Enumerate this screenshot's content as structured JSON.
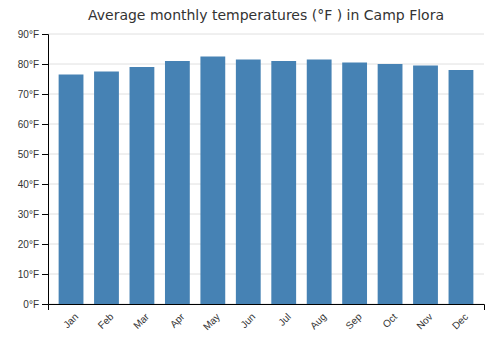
{
  "chart_data": {
    "type": "bar",
    "title": "Average monthly temperatures (°F ) in Camp Flora",
    "categories": [
      "Jan",
      "Feb",
      "Mar",
      "Apr",
      "May",
      "Jun",
      "Jul",
      "Aug",
      "Sep",
      "Oct",
      "Nov",
      "Dec"
    ],
    "values": [
      76.5,
      77.5,
      79.0,
      81.0,
      82.5,
      81.5,
      81.0,
      81.5,
      80.5,
      80.0,
      79.5,
      78.0
    ],
    "ylim": [
      0,
      90
    ],
    "yticks": [
      {
        "value": 0,
        "label": "0°F"
      },
      {
        "value": 10,
        "label": "10°F"
      },
      {
        "value": 20,
        "label": "20°F"
      },
      {
        "value": 30,
        "label": "30°F"
      },
      {
        "value": 40,
        "label": "40°F"
      },
      {
        "value": 50,
        "label": "50°F"
      },
      {
        "value": 60,
        "label": "60°F"
      },
      {
        "value": 70,
        "label": "70°F"
      },
      {
        "value": 80,
        "label": "80°F"
      },
      {
        "value": 90,
        "label": "90°F"
      }
    ],
    "grid": true
  }
}
